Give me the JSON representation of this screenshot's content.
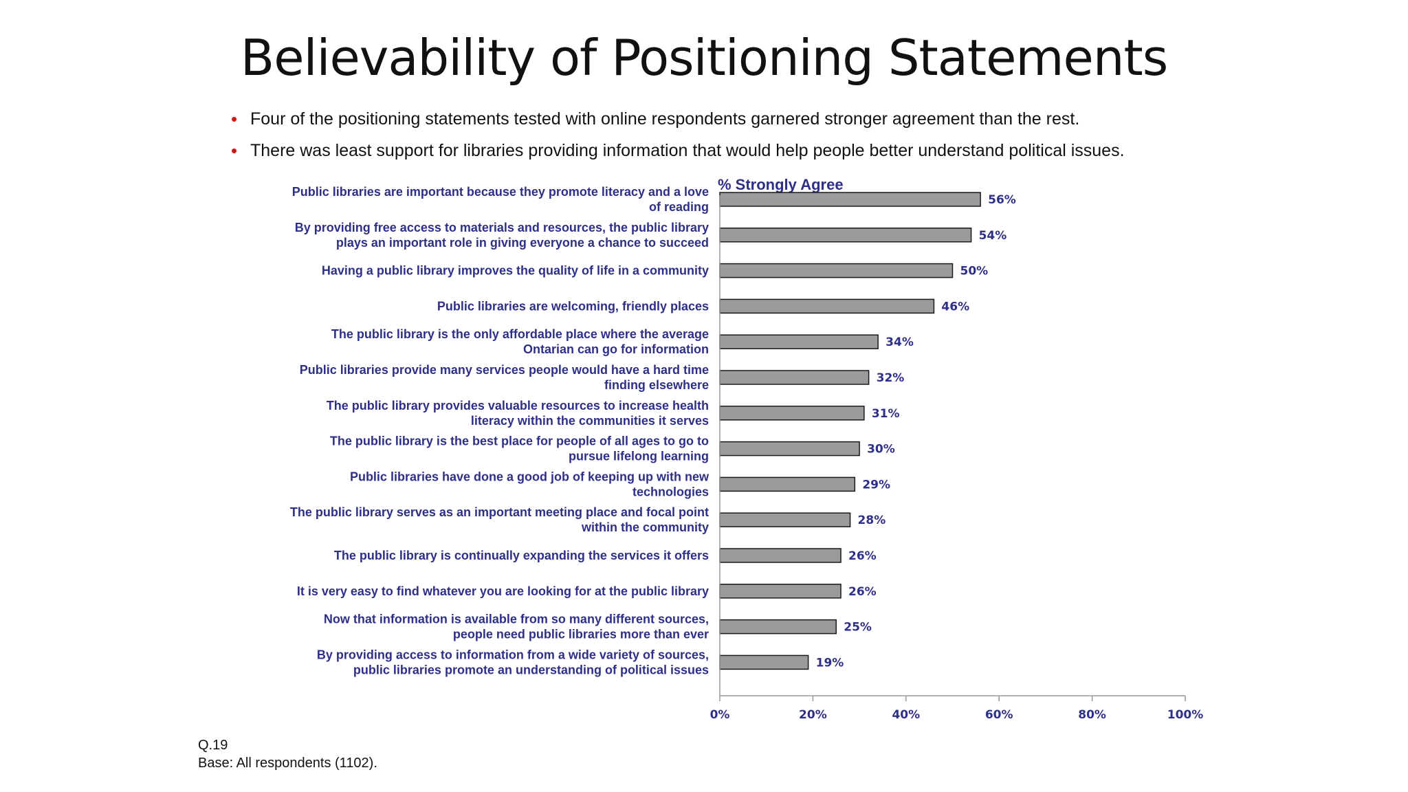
{
  "title": "Believability of Positioning Statements",
  "bullets": [
    "Four of the positioning statements tested with online respondents garnered stronger agreement than the rest.",
    "There was least support for libraries providing information that would help people better understand political issues."
  ],
  "bullet_marker": "•",
  "colors": {
    "bar_fill": "#9b9b9b",
    "bar_stroke": "#1a1a1a",
    "label_text": "#2e2f86",
    "bullet_marker": "#d01818"
  },
  "chart_data": {
    "type": "bar",
    "orientation": "horizontal",
    "xlabel": "% Strongly Agree",
    "xlim": [
      0,
      100
    ],
    "x_ticks": [
      "0%",
      "20%",
      "40%",
      "60%",
      "80%",
      "100%"
    ],
    "grid": false,
    "categories": [
      [
        "Public libraries are important because they promote literacy and a love",
        "of reading"
      ],
      [
        "By providing free access to materials and resources, the public library",
        "plays an important role in giving everyone a chance to succeed"
      ],
      [
        "Having a public library improves the quality of life in a community"
      ],
      [
        "Public libraries are welcoming, friendly places"
      ],
      [
        "The public library is the only affordable place where the average",
        "Ontarian can go for information"
      ],
      [
        "Public libraries provide many services people would have a hard time",
        "finding elsewhere"
      ],
      [
        "The public library provides valuable resources to increase health",
        "literacy within the communities it serves"
      ],
      [
        "The public library is the best place for people of all ages to go to",
        "pursue lifelong learning"
      ],
      [
        "Public libraries have done a good job of keeping up with new",
        "technologies"
      ],
      [
        "The public library serves as an important meeting place and focal point",
        "within the community"
      ],
      [
        "The public library is continually expanding the services it offers"
      ],
      [
        "It is very easy to find whatever you are looking for at the public library"
      ],
      [
        "Now that information is available from so many different sources,",
        "people need public libraries more than ever"
      ],
      [
        "By providing access to information from a wide variety of sources,",
        "public libraries promote an understanding of political issues"
      ]
    ],
    "values": [
      56,
      54,
      50,
      46,
      34,
      32,
      31,
      30,
      29,
      28,
      26,
      26,
      25,
      19
    ],
    "value_labels": [
      "56%",
      "54%",
      "50%",
      "46%",
      "34%",
      "32%",
      "31%",
      "30%",
      "29%",
      "28%",
      "26%",
      "26%",
      "25%",
      "19%"
    ]
  },
  "footnote": {
    "question": "Q.19",
    "base": "Base:  All respondents (1102)."
  }
}
